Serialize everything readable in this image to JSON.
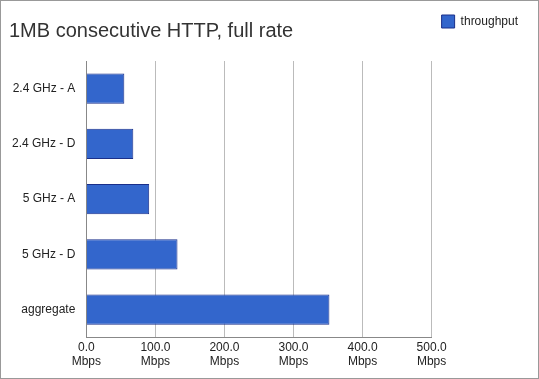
{
  "chart_data": {
    "type": "bar",
    "orientation": "horizontal",
    "title": "1MB consecutive HTTP, full rate",
    "categories": [
      "2.4 GHz - A",
      "2.4 GHz - D",
      "5 GHz - A",
      "5 GHz - D",
      "aggregate"
    ],
    "series": [
      {
        "name": "throughput",
        "color": "#3366cc",
        "values": [
          55,
          68,
          91,
          132,
          352
        ]
      }
    ],
    "xlim": [
      0,
      500
    ],
    "xticks": [
      {
        "value": 0,
        "label": "0.0 Mbps"
      },
      {
        "value": 100,
        "label": "100.0 Mbps"
      },
      {
        "value": 200,
        "label": "200.0 Mbps"
      },
      {
        "value": 300,
        "label": "300.0 Mbps"
      },
      {
        "value": 400,
        "label": "400.0 Mbps"
      },
      {
        "value": 500,
        "label": "500.0 Mbps"
      }
    ],
    "grid": true,
    "legend": "right"
  }
}
